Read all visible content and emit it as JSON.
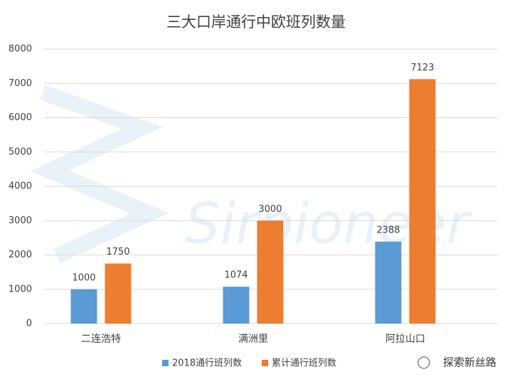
{
  "chart_data": {
    "type": "bar",
    "title": "三大口岸通行中欧班列数量",
    "categories": [
      "二连浩特",
      "满洲里",
      "阿拉山口"
    ],
    "series": [
      {
        "name": "2018通行班列数",
        "color": "#5b9bd5",
        "values": [
          1000,
          1074,
          2388
        ]
      },
      {
        "name": "累计通行班列数",
        "color": "#ed7d31",
        "values": [
          1750,
          3000,
          7123
        ]
      }
    ],
    "ylim": [
      0,
      8000
    ],
    "yticks": [
      0,
      1000,
      2000,
      3000,
      4000,
      5000,
      6000,
      7000,
      8000
    ],
    "grid": true,
    "legend": "bottom",
    "watermark": "Sirpioneer",
    "credit": "探索新丝路"
  }
}
